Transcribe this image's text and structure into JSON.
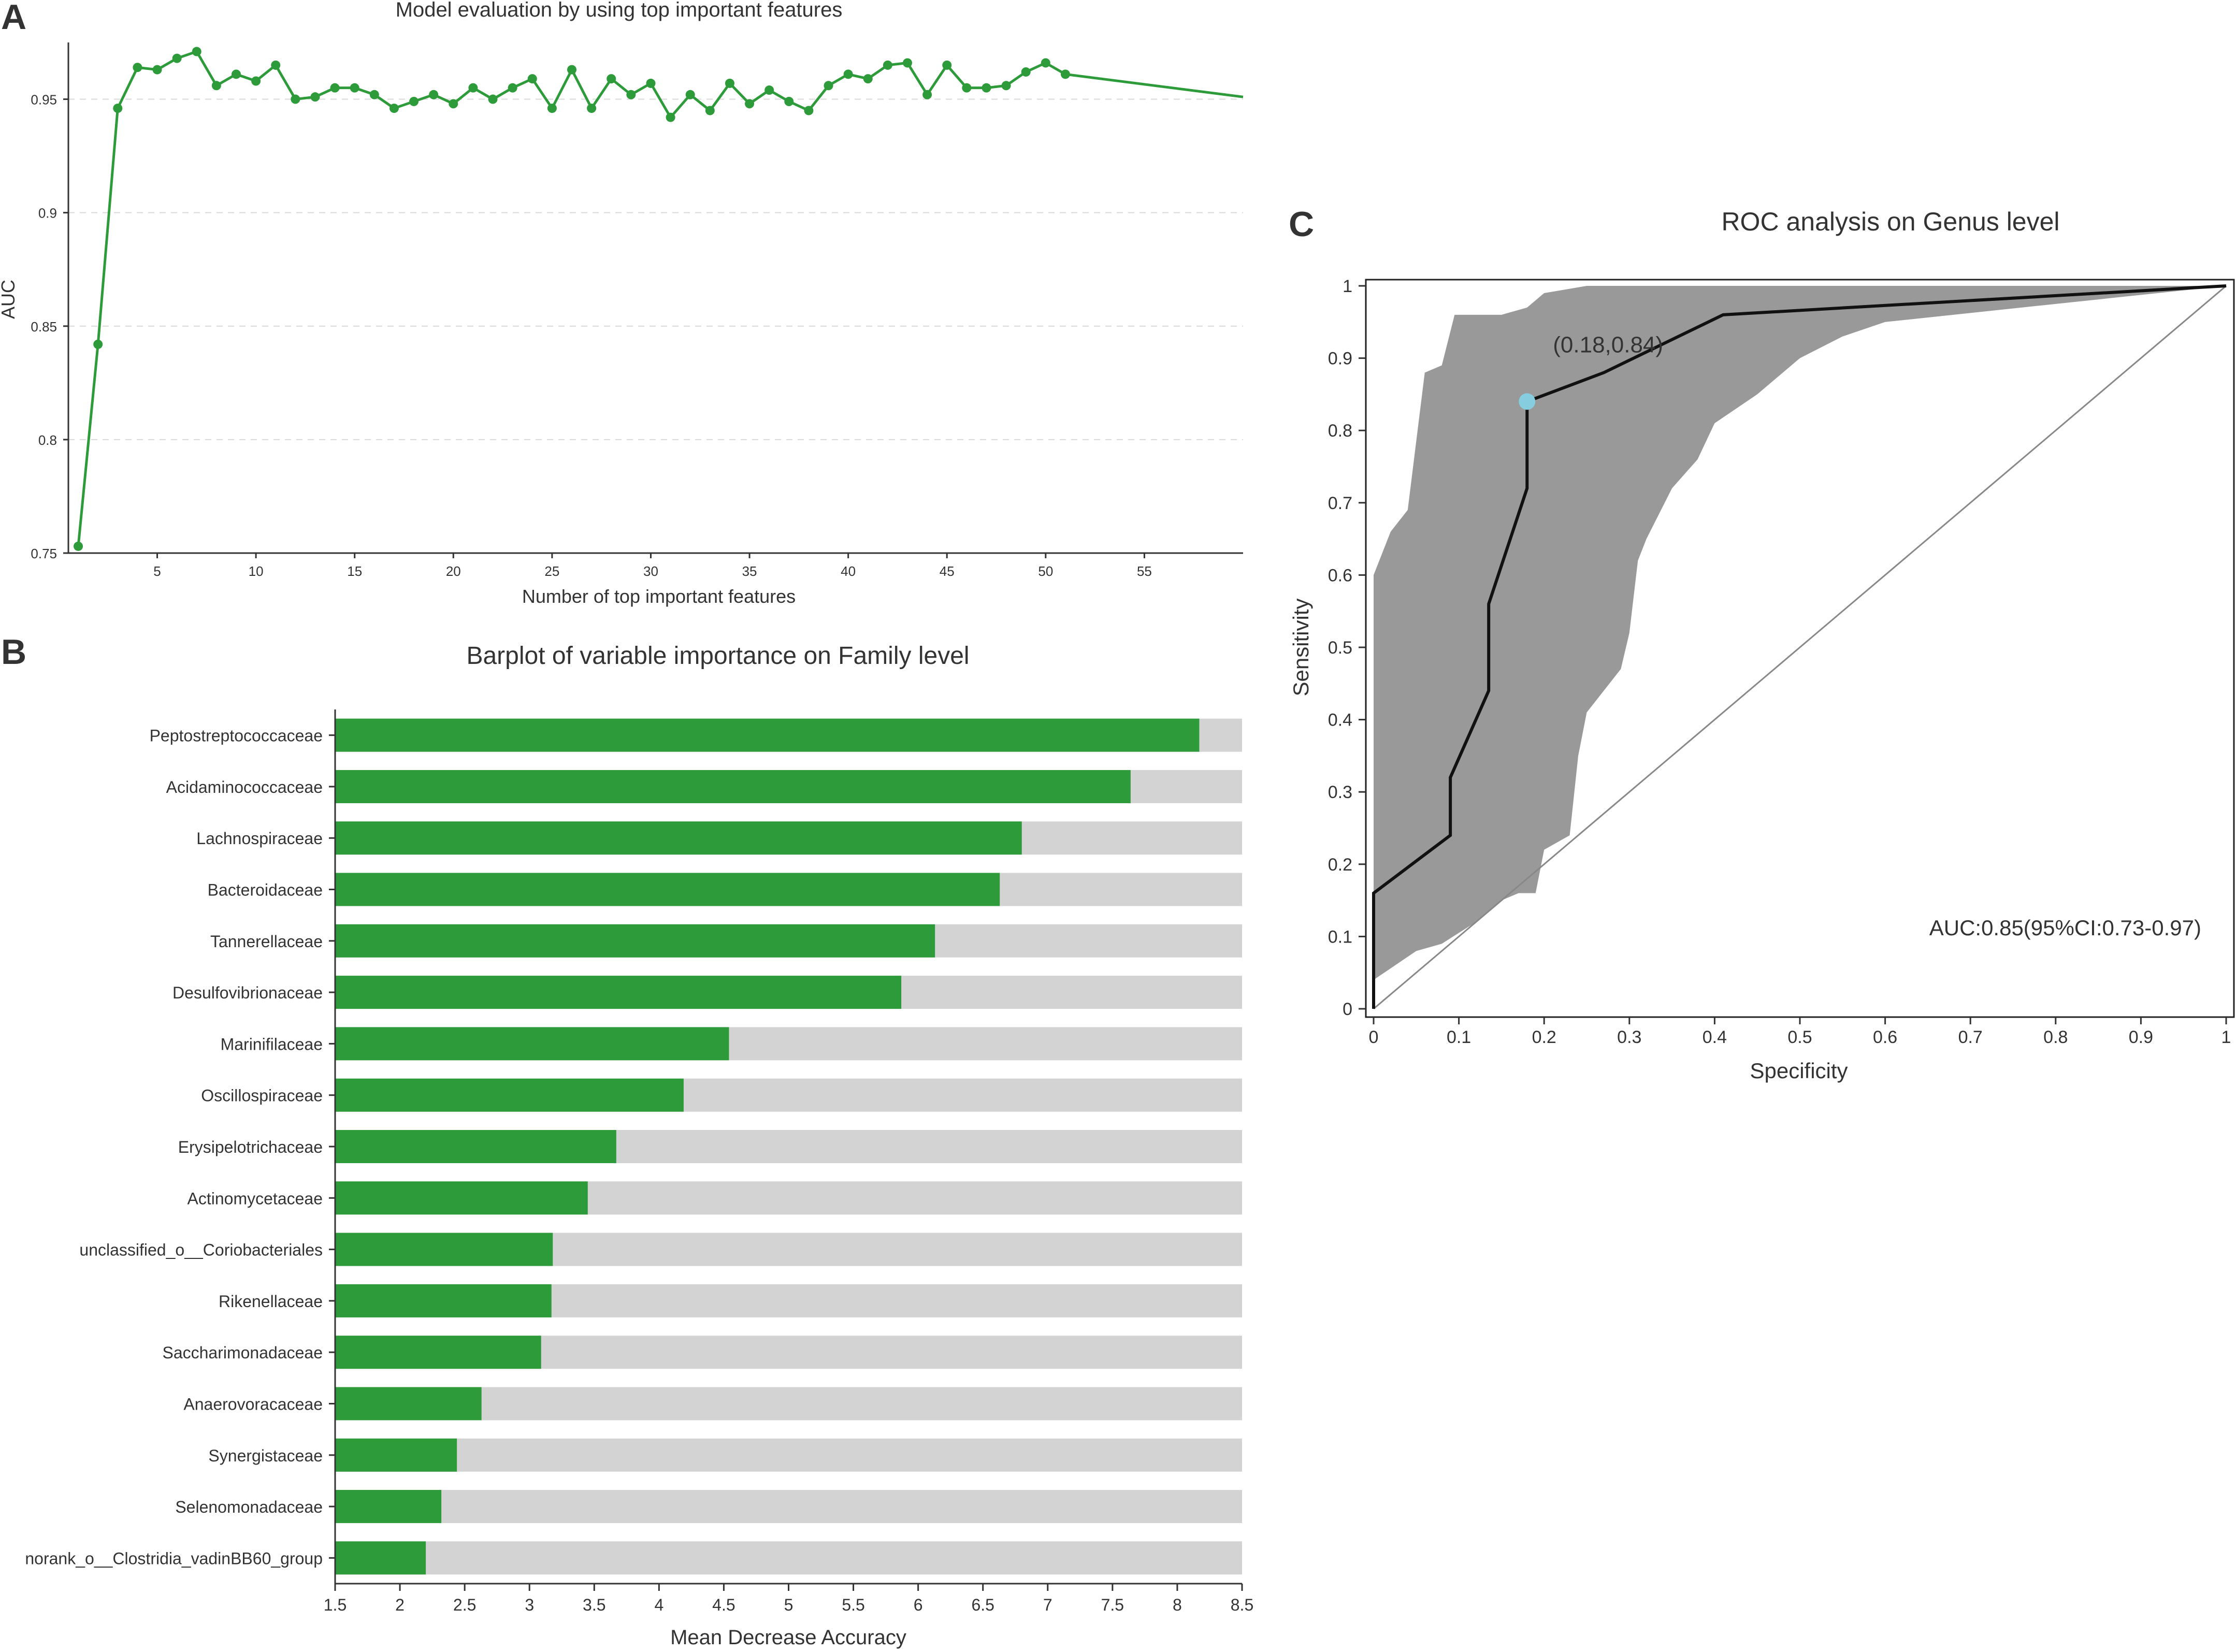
{
  "panels": {
    "a": {
      "letter": "A"
    },
    "b": {
      "letter": "B"
    },
    "c": {
      "letter": "C"
    }
  },
  "chart_data": [
    {
      "id": "panel-a",
      "type": "line",
      "title": "Model evaluation by using top important features",
      "xlabel": "Number of top important features",
      "ylabel": "AUC",
      "xlim": [
        0.5,
        60
      ],
      "ylim": [
        0.75,
        0.975
      ],
      "xticks": [
        5,
        10,
        15,
        20,
        25,
        30,
        35,
        40,
        45,
        50,
        55
      ],
      "yticks": [
        0.75,
        0.8,
        0.85,
        0.9,
        0.95
      ],
      "ytick_labels": [
        "0.75",
        "0.8",
        "0.85",
        "0.9",
        "0.95"
      ],
      "grid": "horizontal dashed",
      "color": "#2e9b3a",
      "x": [
        1,
        2,
        3,
        4,
        5,
        6,
        7,
        8,
        9,
        10,
        11,
        12,
        13,
        14,
        15,
        16,
        17,
        18,
        19,
        20,
        21,
        22,
        23,
        24,
        25,
        26,
        27,
        28,
        29,
        30,
        31,
        32,
        33,
        34,
        35,
        36,
        37,
        38,
        39,
        40,
        41,
        42,
        43,
        44,
        45,
        46,
        47,
        48,
        49,
        50,
        51,
        60
      ],
      "y": [
        0.753,
        0.842,
        0.946,
        0.964,
        0.963,
        0.968,
        0.971,
        0.956,
        0.961,
        0.958,
        0.965,
        0.95,
        0.951,
        0.955,
        0.955,
        0.952,
        0.946,
        0.949,
        0.952,
        0.948,
        0.955,
        0.95,
        0.955,
        0.959,
        0.946,
        0.963,
        0.946,
        0.959,
        0.952,
        0.957,
        0.942,
        0.952,
        0.945,
        0.957,
        0.948,
        0.954,
        0.949,
        0.945,
        0.956,
        0.961,
        0.959,
        0.965,
        0.966,
        0.952,
        0.965,
        0.955,
        0.955,
        0.956,
        0.962,
        0.966,
        0.961,
        0.951
      ],
      "markers_up_to_x": 51
    },
    {
      "id": "panel-b",
      "type": "bar",
      "orientation": "horizontal",
      "title": "Barplot of variable importance on Family level",
      "xlabel": "Mean Decrease Accuracy",
      "ylabel": "",
      "xlim": [
        1.5,
        8.5
      ],
      "xticks": [
        1.5,
        2,
        2.5,
        3,
        3.5,
        4,
        4.5,
        5,
        5.5,
        6,
        6.5,
        7,
        7.5,
        8,
        8.5
      ],
      "bar_color": "#2e9b3a",
      "background_bar_color": "#d3d3d3",
      "categories": [
        "Peptostreptococcaceae",
        "Acidaminococcaceae",
        "Lachnospiraceae",
        "Bacteroidaceae",
        "Tannerellaceae",
        "Desulfovibrionaceae",
        "Marinifilaceae",
        "Oscillospiraceae",
        "Erysipelotrichaceae",
        "Actinomycetaceae",
        "unclassified_o__Coriobacteriales",
        "Rikenellaceae",
        "Saccharimonadaceae",
        "Anaerovoracaceae",
        "Synergistaceae",
        "Selenomonadaceae",
        "norank_o__Clostridia_vadinBB60_group"
      ],
      "values": [
        8.17,
        7.64,
        6.8,
        6.63,
        6.13,
        5.87,
        4.54,
        4.19,
        3.67,
        3.45,
        3.18,
        3.17,
        3.09,
        2.63,
        2.44,
        2.32,
        2.2
      ]
    },
    {
      "id": "panel-c",
      "type": "line",
      "title": "ROC analysis on Genus level",
      "xlabel": "Specificity",
      "ylabel": "Sensitivity",
      "xlim": [
        0,
        1
      ],
      "ylim": [
        0,
        1
      ],
      "ticks": [
        0,
        0.1,
        0.2,
        0.3,
        0.4,
        0.5,
        0.6,
        0.7,
        0.8,
        0.9,
        1
      ],
      "tick_labels": [
        "0",
        "0.1",
        "0.2",
        "0.3",
        "0.4",
        "0.5",
        "0.6",
        "0.7",
        "0.8",
        "0.9",
        "1"
      ],
      "roc_curve": {
        "x": [
          0,
          0,
          0.09,
          0.09,
          0.135,
          0.135,
          0.18,
          0.18,
          0.27,
          0.41,
          1
        ],
        "y": [
          0,
          0.16,
          0.24,
          0.32,
          0.44,
          0.56,
          0.72,
          0.84,
          0.88,
          0.96,
          1
        ]
      },
      "ci_band_upper": {
        "x": [
          0,
          0,
          0.02,
          0.04,
          0.06,
          0.08,
          0.095,
          0.12,
          0.15,
          0.18,
          0.2,
          0.25,
          0.3,
          0.4,
          0.5,
          1
        ],
        "y": [
          0.04,
          0.6,
          0.66,
          0.69,
          0.88,
          0.89,
          0.96,
          0.96,
          0.96,
          0.97,
          0.99,
          1,
          1,
          1,
          1,
          1
        ]
      },
      "ci_band_lower": {
        "x": [
          1,
          0.6,
          0.55,
          0.5,
          0.45,
          0.4,
          0.38,
          0.35,
          0.32,
          0.31,
          0.3,
          0.29,
          0.27,
          0.25,
          0.24,
          0.23,
          0.2,
          0.19,
          0.17,
          0.15,
          0.12,
          0.08,
          0.05,
          0
        ],
        "y": [
          1,
          0.95,
          0.93,
          0.9,
          0.85,
          0.81,
          0.76,
          0.72,
          0.65,
          0.62,
          0.52,
          0.47,
          0.44,
          0.41,
          0.35,
          0.24,
          0.22,
          0.16,
          0.16,
          0.15,
          0.12,
          0.09,
          0.08,
          0.04
        ]
      },
      "diagonal": [
        [
          0,
          0
        ],
        [
          1,
          1
        ]
      ],
      "highlight_point": {
        "x": 0.18,
        "y": 0.84,
        "label": "(0.18,0.84)",
        "color": "#87cde0"
      },
      "auc_label": "AUC:0.85(95%CI:0.73-0.97)",
      "band_color": "#999999",
      "line_color": "#111111"
    }
  ]
}
